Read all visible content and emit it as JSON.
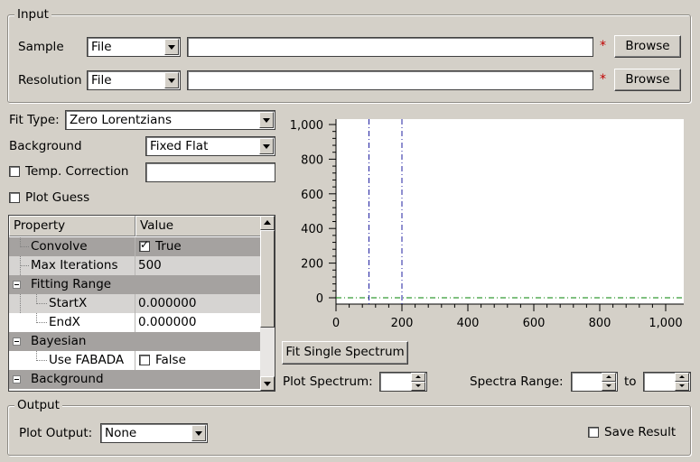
{
  "input_group": {
    "title": "Input",
    "sample": {
      "label": "Sample",
      "type": "File",
      "value": "",
      "browse": "Browse",
      "required": "*"
    },
    "resolution": {
      "label": "Resolution",
      "type": "File",
      "value": "",
      "browse": "Browse",
      "required": "*"
    }
  },
  "fit": {
    "fit_type_label": "Fit Type:",
    "fit_type_value": "Zero Lorentzians",
    "background_label": "Background",
    "background_value": "Fixed Flat",
    "temp_correction_label": "Temp. Correction",
    "temp_correction_checked": false,
    "temp_correction_value": "",
    "plot_guess_label": "Plot Guess",
    "plot_guess_checked": false
  },
  "property_table": {
    "headers": [
      "Property",
      "Value"
    ],
    "rows": [
      {
        "name": "Convolve",
        "value": "True",
        "checkbox": true,
        "checked": true,
        "level": 1,
        "style": "cat"
      },
      {
        "name": "Max Iterations",
        "value": "500",
        "level": 1,
        "style": "odd"
      },
      {
        "name": "Fitting Range",
        "value": "",
        "group": true,
        "expanded": true,
        "level": 0,
        "style": "cat"
      },
      {
        "name": "StartX",
        "value": "0.000000",
        "level": 2,
        "style": "odd"
      },
      {
        "name": "EndX",
        "value": "0.000000",
        "level": 2,
        "style": "even"
      },
      {
        "name": "Bayesian",
        "value": "",
        "group": true,
        "expanded": true,
        "level": 0,
        "style": "cat"
      },
      {
        "name": "Use FABADA",
        "value": "False",
        "checkbox": true,
        "checked": false,
        "level": 2,
        "style": "even"
      },
      {
        "name": "Background",
        "value": "",
        "group": true,
        "expanded": true,
        "level": 0,
        "style": "cat"
      }
    ]
  },
  "chart_data": {
    "type": "line",
    "x_ticks": [
      "0",
      "200",
      "400",
      "600",
      "800",
      "1,000"
    ],
    "y_ticks": [
      "0",
      "200",
      "400",
      "600",
      "800",
      "1,000"
    ],
    "xlim": [
      0,
      1000
    ],
    "ylim": [
      0,
      1000
    ],
    "vertical_markers": [
      100,
      200
    ],
    "horizontal_marker": 0,
    "colors": {
      "markers": "#2020a0",
      "baseline": "#008000"
    }
  },
  "plot_controls": {
    "fit_single_label": "Fit Single Spectrum",
    "plot_spectrum_label": "Plot Spectrum:",
    "plot_spectrum_value": "",
    "spectra_range_label": "Spectra Range:",
    "spectra_from": "",
    "to_label": "to",
    "spectra_to": ""
  },
  "output_group": {
    "title": "Output",
    "plot_output_label": "Plot Output:",
    "plot_output_value": "None",
    "save_result_label": "Save Result",
    "save_result_checked": false
  }
}
